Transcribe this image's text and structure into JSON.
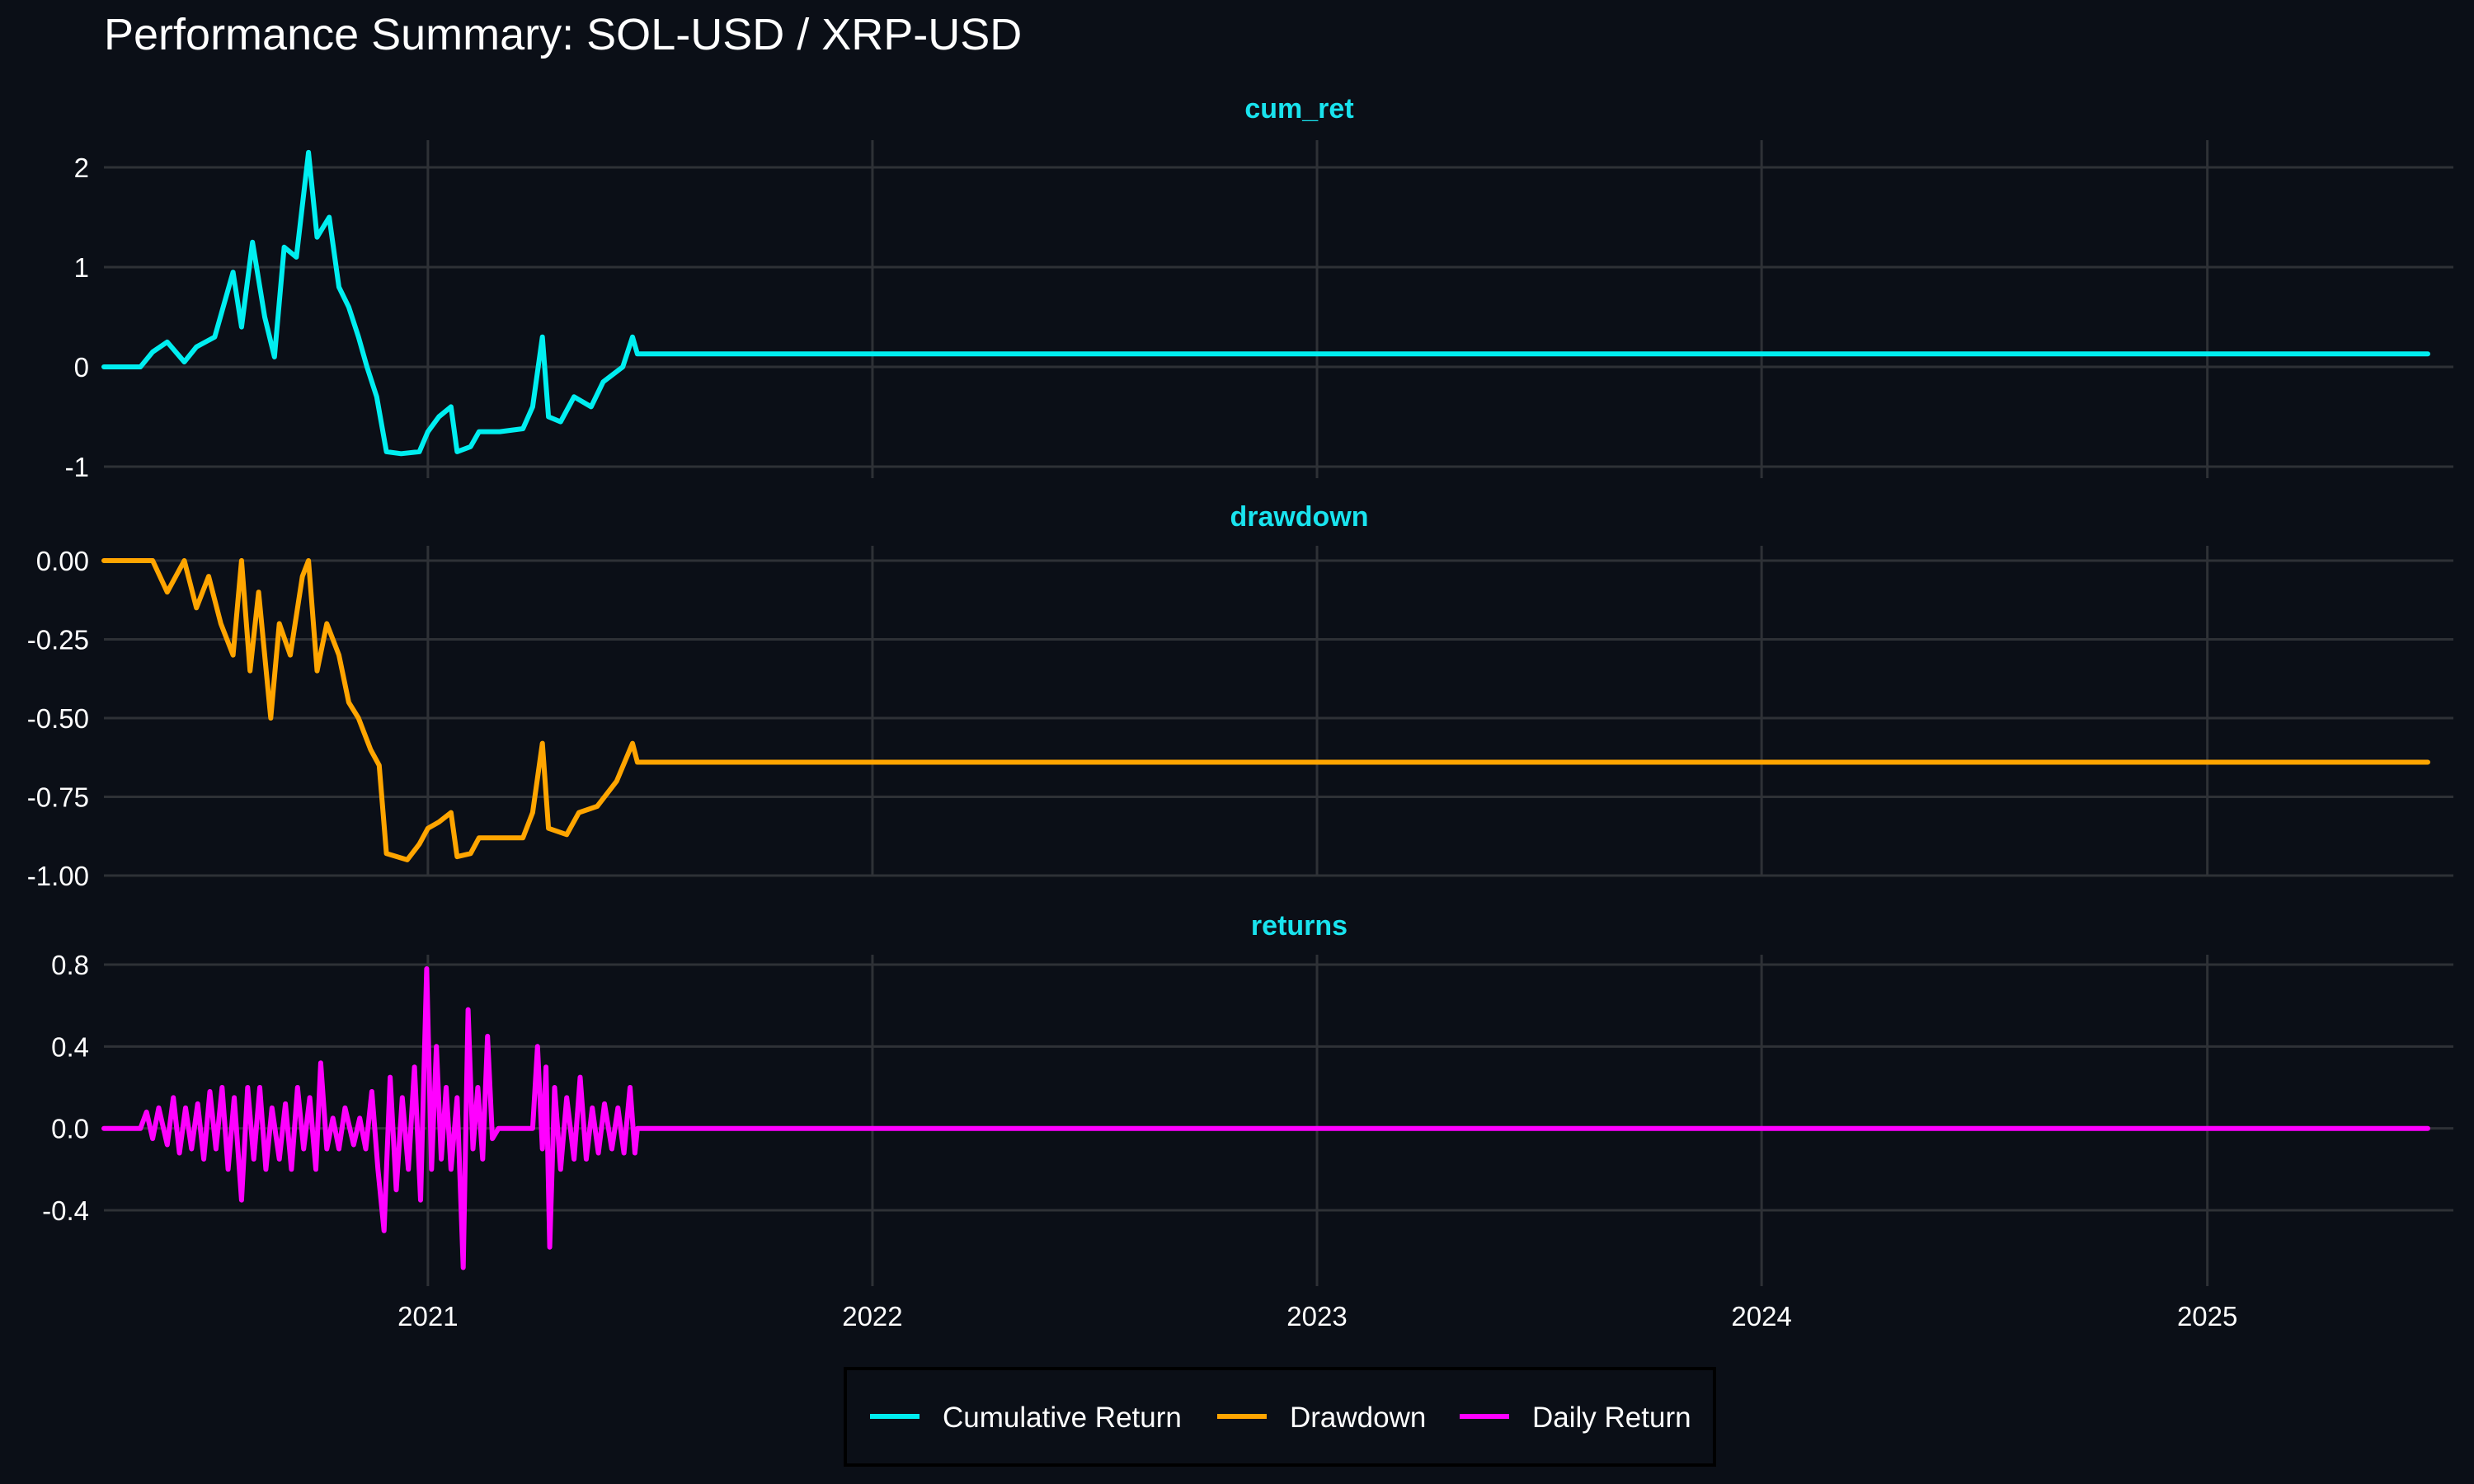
{
  "chart_data": {
    "type": "line",
    "title": "Performance Summary: SOL-USD / XRP-USD",
    "x_ticks": [
      "2021",
      "2022",
      "2023",
      "2024",
      "2025"
    ],
    "xlim": [
      "2020-04-10",
      "2025-07-22"
    ],
    "legend_position": "bottom",
    "grid": true,
    "colors": {
      "background": "#0b0f17",
      "grid": "#2e3136",
      "facet_title": "#19e3ee"
    },
    "legend": [
      {
        "label": "Cumulative Return",
        "color": "#00eef0"
      },
      {
        "label": "Drawdown",
        "color": "#ffa500"
      },
      {
        "label": "Daily Return",
        "color": "#ff00ff"
      }
    ],
    "panels": [
      {
        "title": "cum_ret",
        "y_ticks": [
          "2",
          "1",
          "0",
          "-1"
        ],
        "ylim": [
          -1,
          2.2
        ],
        "series": {
          "color": "#00eef0",
          "points": [
            [
              "2020-04-10",
              0
            ],
            [
              "2020-05-10",
              0
            ],
            [
              "2020-05-20",
              0.15
            ],
            [
              "2020-06-01",
              0.25
            ],
            [
              "2020-06-15",
              0.05
            ],
            [
              "2020-06-25",
              0.2
            ],
            [
              "2020-07-10",
              0.3
            ],
            [
              "2020-07-25",
              0.95
            ],
            [
              "2020-08-01",
              0.4
            ],
            [
              "2020-08-10",
              1.25
            ],
            [
              "2020-08-20",
              0.5
            ],
            [
              "2020-08-28",
              0.1
            ],
            [
              "2020-09-05",
              1.2
            ],
            [
              "2020-09-15",
              1.1
            ],
            [
              "2020-09-25",
              2.15
            ],
            [
              "2020-10-02",
              1.3
            ],
            [
              "2020-10-12",
              1.5
            ],
            [
              "2020-10-20",
              0.8
            ],
            [
              "2020-10-28",
              0.6
            ],
            [
              "2020-11-05",
              0.3
            ],
            [
              "2020-11-12",
              0.0
            ],
            [
              "2020-11-20",
              -0.3
            ],
            [
              "2020-11-28",
              -0.85
            ],
            [
              "2020-12-10",
              -0.87
            ],
            [
              "2020-12-25",
              -0.85
            ],
            [
              "2021-01-01",
              -0.65
            ],
            [
              "2021-01-10",
              -0.5
            ],
            [
              "2021-01-20",
              -0.4
            ],
            [
              "2021-01-25",
              -0.85
            ],
            [
              "2021-02-05",
              -0.8
            ],
            [
              "2021-02-12",
              -0.65
            ],
            [
              "2021-03-01",
              -0.65
            ],
            [
              "2021-03-20",
              -0.62
            ],
            [
              "2021-03-28",
              -0.4
            ],
            [
              "2021-04-05",
              0.3
            ],
            [
              "2021-04-10",
              -0.5
            ],
            [
              "2021-04-20",
              -0.55
            ],
            [
              "2021-05-01",
              -0.3
            ],
            [
              "2021-05-15",
              -0.4
            ],
            [
              "2021-05-25",
              -0.15
            ],
            [
              "2021-06-10",
              0.0
            ],
            [
              "2021-06-18",
              0.3
            ],
            [
              "2021-06-22",
              0.13
            ],
            [
              "2025-07-01",
              0.13
            ]
          ]
        }
      },
      {
        "title": "drawdown",
        "y_ticks": [
          "0.00",
          "-0.25",
          "-0.50",
          "-0.75",
          "-1.00"
        ],
        "ylim": [
          -1.0,
          0.0
        ],
        "series": {
          "color": "#ffa500",
          "points": [
            [
              "2020-04-10",
              0
            ],
            [
              "2020-05-20",
              0
            ],
            [
              "2020-06-01",
              -0.1
            ],
            [
              "2020-06-15",
              0
            ],
            [
              "2020-06-25",
              -0.15
            ],
            [
              "2020-07-05",
              -0.05
            ],
            [
              "2020-07-15",
              -0.2
            ],
            [
              "2020-07-25",
              -0.3
            ],
            [
              "2020-08-01",
              0
            ],
            [
              "2020-08-08",
              -0.35
            ],
            [
              "2020-08-15",
              -0.1
            ],
            [
              "2020-08-25",
              -0.5
            ],
            [
              "2020-09-01",
              -0.2
            ],
            [
              "2020-09-10",
              -0.3
            ],
            [
              "2020-09-20",
              -0.05
            ],
            [
              "2020-09-25",
              0
            ],
            [
              "2020-10-02",
              -0.35
            ],
            [
              "2020-10-10",
              -0.2
            ],
            [
              "2020-10-20",
              -0.3
            ],
            [
              "2020-10-28",
              -0.45
            ],
            [
              "2020-11-05",
              -0.5
            ],
            [
              "2020-11-15",
              -0.6
            ],
            [
              "2020-11-22",
              -0.65
            ],
            [
              "2020-11-28",
              -0.93
            ],
            [
              "2020-12-15",
              -0.95
            ],
            [
              "2020-12-25",
              -0.9
            ],
            [
              "2021-01-01",
              -0.85
            ],
            [
              "2021-01-10",
              -0.83
            ],
            [
              "2021-01-20",
              -0.8
            ],
            [
              "2021-01-25",
              -0.94
            ],
            [
              "2021-02-05",
              -0.93
            ],
            [
              "2021-02-12",
              -0.88
            ],
            [
              "2021-03-20",
              -0.88
            ],
            [
              "2021-03-28",
              -0.8
            ],
            [
              "2021-04-05",
              -0.58
            ],
            [
              "2021-04-10",
              -0.85
            ],
            [
              "2021-04-25",
              -0.87
            ],
            [
              "2021-05-05",
              -0.8
            ],
            [
              "2021-05-20",
              -0.78
            ],
            [
              "2021-06-05",
              -0.7
            ],
            [
              "2021-06-18",
              -0.58
            ],
            [
              "2021-06-22",
              -0.64
            ],
            [
              "2025-07-01",
              -0.64
            ]
          ]
        }
      },
      {
        "title": "returns",
        "y_ticks": [
          "0.8",
          "0.4",
          "0.0",
          "-0.4"
        ],
        "ylim": [
          -0.72,
          0.82
        ],
        "series": {
          "color": "#ff00ff",
          "points": [
            [
              "2020-04-10",
              0
            ],
            [
              "2020-05-10",
              0
            ],
            [
              "2020-05-15",
              0.08
            ],
            [
              "2020-05-20",
              -0.05
            ],
            [
              "2020-05-25",
              0.1
            ],
            [
              "2020-06-01",
              -0.08
            ],
            [
              "2020-06-06",
              0.15
            ],
            [
              "2020-06-11",
              -0.12
            ],
            [
              "2020-06-16",
              0.1
            ],
            [
              "2020-06-21",
              -0.1
            ],
            [
              "2020-06-26",
              0.12
            ],
            [
              "2020-07-01",
              -0.15
            ],
            [
              "2020-07-06",
              0.18
            ],
            [
              "2020-07-11",
              -0.1
            ],
            [
              "2020-07-16",
              0.2
            ],
            [
              "2020-07-21",
              -0.2
            ],
            [
              "2020-07-26",
              0.15
            ],
            [
              "2020-08-01",
              -0.35
            ],
            [
              "2020-08-06",
              0.2
            ],
            [
              "2020-08-11",
              -0.15
            ],
            [
              "2020-08-16",
              0.2
            ],
            [
              "2020-08-21",
              -0.2
            ],
            [
              "2020-08-26",
              0.1
            ],
            [
              "2020-09-01",
              -0.15
            ],
            [
              "2020-09-06",
              0.12
            ],
            [
              "2020-09-11",
              -0.2
            ],
            [
              "2020-09-16",
              0.2
            ],
            [
              "2020-09-21",
              -0.1
            ],
            [
              "2020-09-26",
              0.15
            ],
            [
              "2020-10-01",
              -0.2
            ],
            [
              "2020-10-05",
              0.32
            ],
            [
              "2020-10-10",
              -0.1
            ],
            [
              "2020-10-15",
              0.05
            ],
            [
              "2020-10-20",
              -0.1
            ],
            [
              "2020-10-25",
              0.1
            ],
            [
              "2020-11-01",
              -0.08
            ],
            [
              "2020-11-06",
              0.05
            ],
            [
              "2020-11-11",
              -0.1
            ],
            [
              "2020-11-16",
              0.18
            ],
            [
              "2020-11-21",
              -0.2
            ],
            [
              "2020-11-26",
              -0.5
            ],
            [
              "2020-12-01",
              0.25
            ],
            [
              "2020-12-06",
              -0.3
            ],
            [
              "2020-12-11",
              0.15
            ],
            [
              "2020-12-16",
              -0.2
            ],
            [
              "2020-12-21",
              0.3
            ],
            [
              "2020-12-26",
              -0.35
            ],
            [
              "2020-12-31",
              0.78
            ],
            [
              "2021-01-04",
              -0.2
            ],
            [
              "2021-01-08",
              0.4
            ],
            [
              "2021-01-12",
              -0.15
            ],
            [
              "2021-01-16",
              0.2
            ],
            [
              "2021-01-20",
              -0.2
            ],
            [
              "2021-01-25",
              0.15
            ],
            [
              "2021-01-30",
              -0.68
            ],
            [
              "2021-02-03",
              0.58
            ],
            [
              "2021-02-07",
              -0.1
            ],
            [
              "2021-02-11",
              0.2
            ],
            [
              "2021-02-15",
              -0.15
            ],
            [
              "2021-02-19",
              0.45
            ],
            [
              "2021-02-23",
              -0.05
            ],
            [
              "2021-02-28",
              0
            ],
            [
              "2021-03-28",
              0
            ],
            [
              "2021-04-01",
              0.4
            ],
            [
              "2021-04-05",
              -0.1
            ],
            [
              "2021-04-08",
              0.3
            ],
            [
              "2021-04-11",
              -0.58
            ],
            [
              "2021-04-15",
              0.2
            ],
            [
              "2021-04-20",
              -0.2
            ],
            [
              "2021-04-25",
              0.15
            ],
            [
              "2021-05-01",
              -0.15
            ],
            [
              "2021-05-06",
              0.25
            ],
            [
              "2021-05-11",
              -0.15
            ],
            [
              "2021-05-16",
              0.1
            ],
            [
              "2021-05-21",
              -0.12
            ],
            [
              "2021-05-26",
              0.12
            ],
            [
              "2021-06-01",
              -0.1
            ],
            [
              "2021-06-06",
              0.1
            ],
            [
              "2021-06-11",
              -0.12
            ],
            [
              "2021-06-16",
              0.2
            ],
            [
              "2021-06-20",
              -0.12
            ],
            [
              "2021-06-22",
              0
            ],
            [
              "2025-07-01",
              0
            ]
          ]
        }
      }
    ]
  }
}
